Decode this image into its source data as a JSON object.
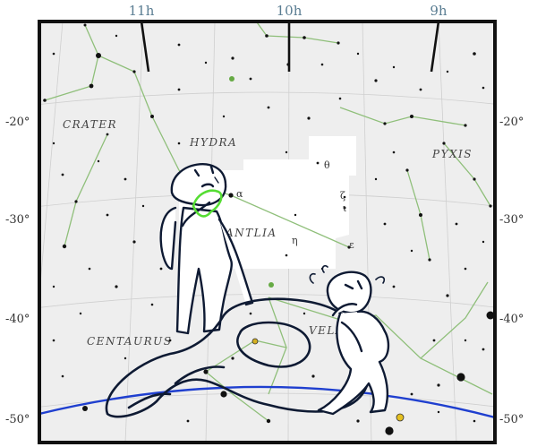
{
  "map": {
    "ra_labels": [
      "11h",
      "10h",
      "9h"
    ],
    "dec_labels": [
      "-20°",
      "-30°",
      "-40°",
      "-50°"
    ],
    "constellations": [
      "CRATER",
      "HYDRA",
      "PYXIS",
      "ANTLIA",
      "VELA",
      "CENTAURUS"
    ],
    "star_labels": [
      "α",
      "θ",
      "η",
      "ε",
      "ζ",
      "ι"
    ],
    "colors": {
      "background": "#eeeeee",
      "frame": "#111111",
      "constellation_lines": "#8fbf7a",
      "ecliptic": "#1f3fcf",
      "highlight_region": "#ffffff",
      "drawing_ink": "#0e1a33",
      "hand_highlight": "#55dd33"
    },
    "overlay_icons": [
      "standing-figure-icon",
      "crouching-creature-icon",
      "slug-creature-icon"
    ]
  }
}
